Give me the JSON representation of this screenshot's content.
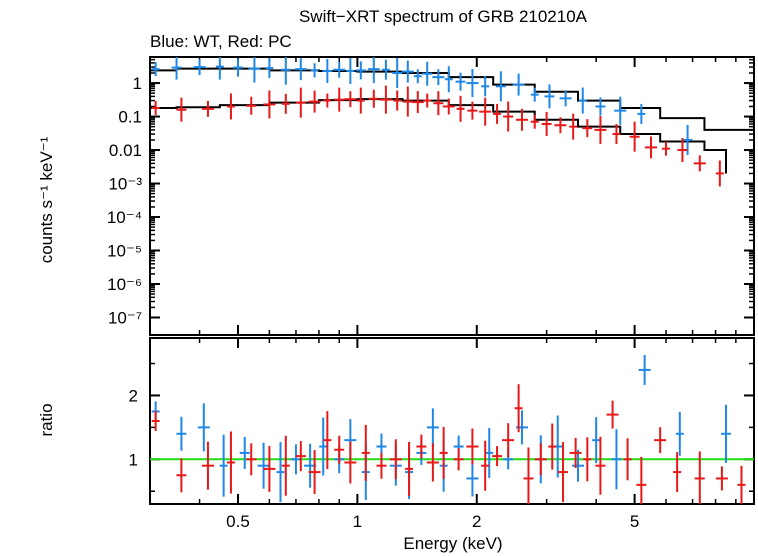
{
  "title": "Swift−XRT spectrum of GRB 210210A",
  "subtitle": "Blue: WT, Red: PC",
  "colors": {
    "wt": "#1f88e6",
    "pc": "#e81818",
    "model": "#000000",
    "unity": "#22dd11"
  },
  "chart_data": [
    {
      "type": "scatter",
      "name": "spectrum",
      "xlabel": "Energy (keV)",
      "ylabel": "counts s⁻¹ keV⁻¹",
      "xscale": "log",
      "yscale": "log",
      "xlim": [
        0.3,
        10
      ],
      "ylim": [
        3e-08,
        6
      ],
      "ytick_labels": [
        "1",
        "0.1",
        "0.01",
        "10⁻³",
        "10⁻⁴",
        "10⁻⁵",
        "10⁻⁶",
        "10⁻⁷"
      ],
      "series": [
        {
          "key": "wt",
          "points": [
            [
              0.31,
              2.6
            ],
            [
              0.35,
              2.9
            ],
            [
              0.4,
              3.0
            ],
            [
              0.45,
              3.1
            ],
            [
              0.5,
              2.9
            ],
            [
              0.55,
              2.7
            ],
            [
              0.6,
              2.8
            ],
            [
              0.66,
              2.5
            ],
            [
              0.72,
              2.6
            ],
            [
              0.78,
              2.4
            ],
            [
              0.84,
              2.3
            ],
            [
              0.9,
              2.5
            ],
            [
              0.96,
              2.3
            ],
            [
              1.02,
              2.4
            ],
            [
              1.1,
              2.6
            ],
            [
              1.18,
              2.5
            ],
            [
              1.26,
              2.0
            ],
            [
              1.34,
              2.2
            ],
            [
              1.42,
              1.6
            ],
            [
              1.5,
              1.9
            ],
            [
              1.6,
              1.5
            ],
            [
              1.7,
              1.3
            ],
            [
              1.82,
              1.1
            ],
            [
              1.95,
              1.0
            ],
            [
              2.1,
              0.8
            ],
            [
              2.3,
              0.8
            ],
            [
              2.55,
              0.9
            ],
            [
              2.8,
              0.45
            ],
            [
              3.05,
              0.4
            ],
            [
              3.35,
              0.35
            ],
            [
              3.7,
              0.3
            ],
            [
              4.1,
              0.2
            ],
            [
              4.6,
              0.15
            ],
            [
              5.2,
              0.12
            ],
            [
              6.8,
              0.02
            ]
          ],
          "model": [
            [
              0.3,
              2.4
            ],
            [
              0.35,
              2.7
            ],
            [
              0.45,
              2.7
            ],
            [
              0.6,
              2.4
            ],
            [
              0.8,
              2.3
            ],
            [
              1.0,
              2.2
            ],
            [
              1.3,
              2.0
            ],
            [
              1.7,
              1.5
            ],
            [
              2.2,
              0.9
            ],
            [
              2.8,
              0.55
            ],
            [
              3.6,
              0.3
            ],
            [
              4.6,
              0.18
            ],
            [
              5.8,
              0.09
            ],
            [
              7.5,
              0.04
            ],
            [
              10,
              0.03
            ]
          ]
        },
        {
          "key": "pc",
          "points": [
            [
              0.31,
              0.18
            ],
            [
              0.36,
              0.16
            ],
            [
              0.42,
              0.17
            ],
            [
              0.48,
              0.2
            ],
            [
              0.54,
              0.21
            ],
            [
              0.6,
              0.23
            ],
            [
              0.66,
              0.24
            ],
            [
              0.72,
              0.26
            ],
            [
              0.78,
              0.28
            ],
            [
              0.84,
              0.3
            ],
            [
              0.9,
              0.32
            ],
            [
              0.96,
              0.33
            ],
            [
              1.02,
              0.3
            ],
            [
              1.1,
              0.34
            ],
            [
              1.18,
              0.32
            ],
            [
              1.26,
              0.3
            ],
            [
              1.34,
              0.28
            ],
            [
              1.42,
              0.27
            ],
            [
              1.5,
              0.3
            ],
            [
              1.6,
              0.25
            ],
            [
              1.7,
              0.2
            ],
            [
              1.82,
              0.17
            ],
            [
              1.95,
              0.15
            ],
            [
              2.1,
              0.14
            ],
            [
              2.25,
              0.12
            ],
            [
              2.4,
              0.1
            ],
            [
              2.6,
              0.08
            ],
            [
              2.8,
              0.07
            ],
            [
              3.0,
              0.06
            ],
            [
              3.25,
              0.055
            ],
            [
              3.5,
              0.05
            ],
            [
              3.8,
              0.045
            ],
            [
              4.1,
              0.04
            ],
            [
              4.5,
              0.03
            ],
            [
              5.0,
              0.025
            ],
            [
              5.5,
              0.012
            ],
            [
              6.0,
              0.011
            ],
            [
              6.6,
              0.01
            ],
            [
              7.3,
              0.004
            ],
            [
              8.2,
              0.002
            ]
          ],
          "model": [
            [
              0.3,
              0.18
            ],
            [
              0.35,
              0.19
            ],
            [
              0.45,
              0.22
            ],
            [
              0.6,
              0.26
            ],
            [
              0.8,
              0.31
            ],
            [
              1.0,
              0.33
            ],
            [
              1.3,
              0.3
            ],
            [
              1.7,
              0.22
            ],
            [
              2.2,
              0.14
            ],
            [
              2.8,
              0.08
            ],
            [
              3.6,
              0.05
            ],
            [
              4.6,
              0.03
            ],
            [
              5.8,
              0.018
            ],
            [
              7.5,
              0.01
            ],
            [
              8.5,
              0.002
            ]
          ]
        }
      ]
    },
    {
      "type": "scatter",
      "name": "ratio",
      "xlabel": "Energy (keV)",
      "ylabel": "ratio",
      "xscale": "log",
      "yscale": "linear",
      "xlim": [
        0.3,
        10
      ],
      "ylim": [
        0.3,
        2.9
      ],
      "xtick_labels": [
        "0.5",
        "1",
        "2",
        "5"
      ],
      "ytick_labels": [
        "1",
        "2"
      ],
      "reference_line": 1,
      "series": [
        {
          "key": "wt",
          "points": [
            [
              0.31,
              1.75
            ],
            [
              0.36,
              1.4
            ],
            [
              0.41,
              1.5
            ],
            [
              0.46,
              0.9
            ],
            [
              0.52,
              1.1
            ],
            [
              0.58,
              0.9
            ],
            [
              0.64,
              0.8
            ],
            [
              0.7,
              1.0
            ],
            [
              0.76,
              0.9
            ],
            [
              0.82,
              1.2
            ],
            [
              0.9,
              1.0
            ],
            [
              0.96,
              1.3
            ],
            [
              1.05,
              0.8
            ],
            [
              1.15,
              1.2
            ],
            [
              1.25,
              0.9
            ],
            [
              1.35,
              0.8
            ],
            [
              1.45,
              1.1
            ],
            [
              1.55,
              1.5
            ],
            [
              1.65,
              0.9
            ],
            [
              1.8,
              1.2
            ],
            [
              1.95,
              0.7
            ],
            [
              2.15,
              1.1
            ],
            [
              2.4,
              1.0
            ],
            [
              2.6,
              1.5
            ],
            [
              2.9,
              1.0
            ],
            [
              3.2,
              1.2
            ],
            [
              3.6,
              0.9
            ],
            [
              4.0,
              1.3
            ],
            [
              4.5,
              1.0
            ],
            [
              5.3,
              2.4
            ],
            [
              6.5,
              1.4
            ],
            [
              8.5,
              1.4
            ]
          ]
        },
        {
          "key": "pc",
          "points": [
            [
              0.31,
              1.6
            ],
            [
              0.36,
              0.75
            ],
            [
              0.42,
              0.9
            ],
            [
              0.48,
              0.95
            ],
            [
              0.54,
              1.0
            ],
            [
              0.6,
              0.85
            ],
            [
              0.66,
              0.9
            ],
            [
              0.72,
              1.05
            ],
            [
              0.78,
              0.8
            ],
            [
              0.84,
              1.3
            ],
            [
              0.9,
              1.15
            ],
            [
              0.96,
              0.95
            ],
            [
              1.05,
              1.1
            ],
            [
              1.15,
              0.9
            ],
            [
              1.25,
              1.0
            ],
            [
              1.35,
              0.85
            ],
            [
              1.45,
              1.2
            ],
            [
              1.55,
              0.95
            ],
            [
              1.65,
              1.1
            ],
            [
              1.8,
              1.0
            ],
            [
              1.95,
              1.2
            ],
            [
              2.1,
              0.9
            ],
            [
              2.25,
              1.05
            ],
            [
              2.4,
              1.3
            ],
            [
              2.55,
              1.8
            ],
            [
              2.7,
              0.7
            ],
            [
              2.9,
              1.0
            ],
            [
              3.1,
              1.2
            ],
            [
              3.3,
              0.8
            ],
            [
              3.55,
              1.1
            ],
            [
              3.8,
              1.0
            ],
            [
              4.1,
              0.9
            ],
            [
              4.4,
              1.7
            ],
            [
              4.8,
              1.0
            ],
            [
              5.2,
              0.6
            ],
            [
              5.8,
              1.3
            ],
            [
              6.4,
              0.8
            ],
            [
              7.3,
              0.7
            ],
            [
              8.3,
              0.7
            ],
            [
              9.3,
              0.6
            ]
          ]
        }
      ]
    }
  ]
}
